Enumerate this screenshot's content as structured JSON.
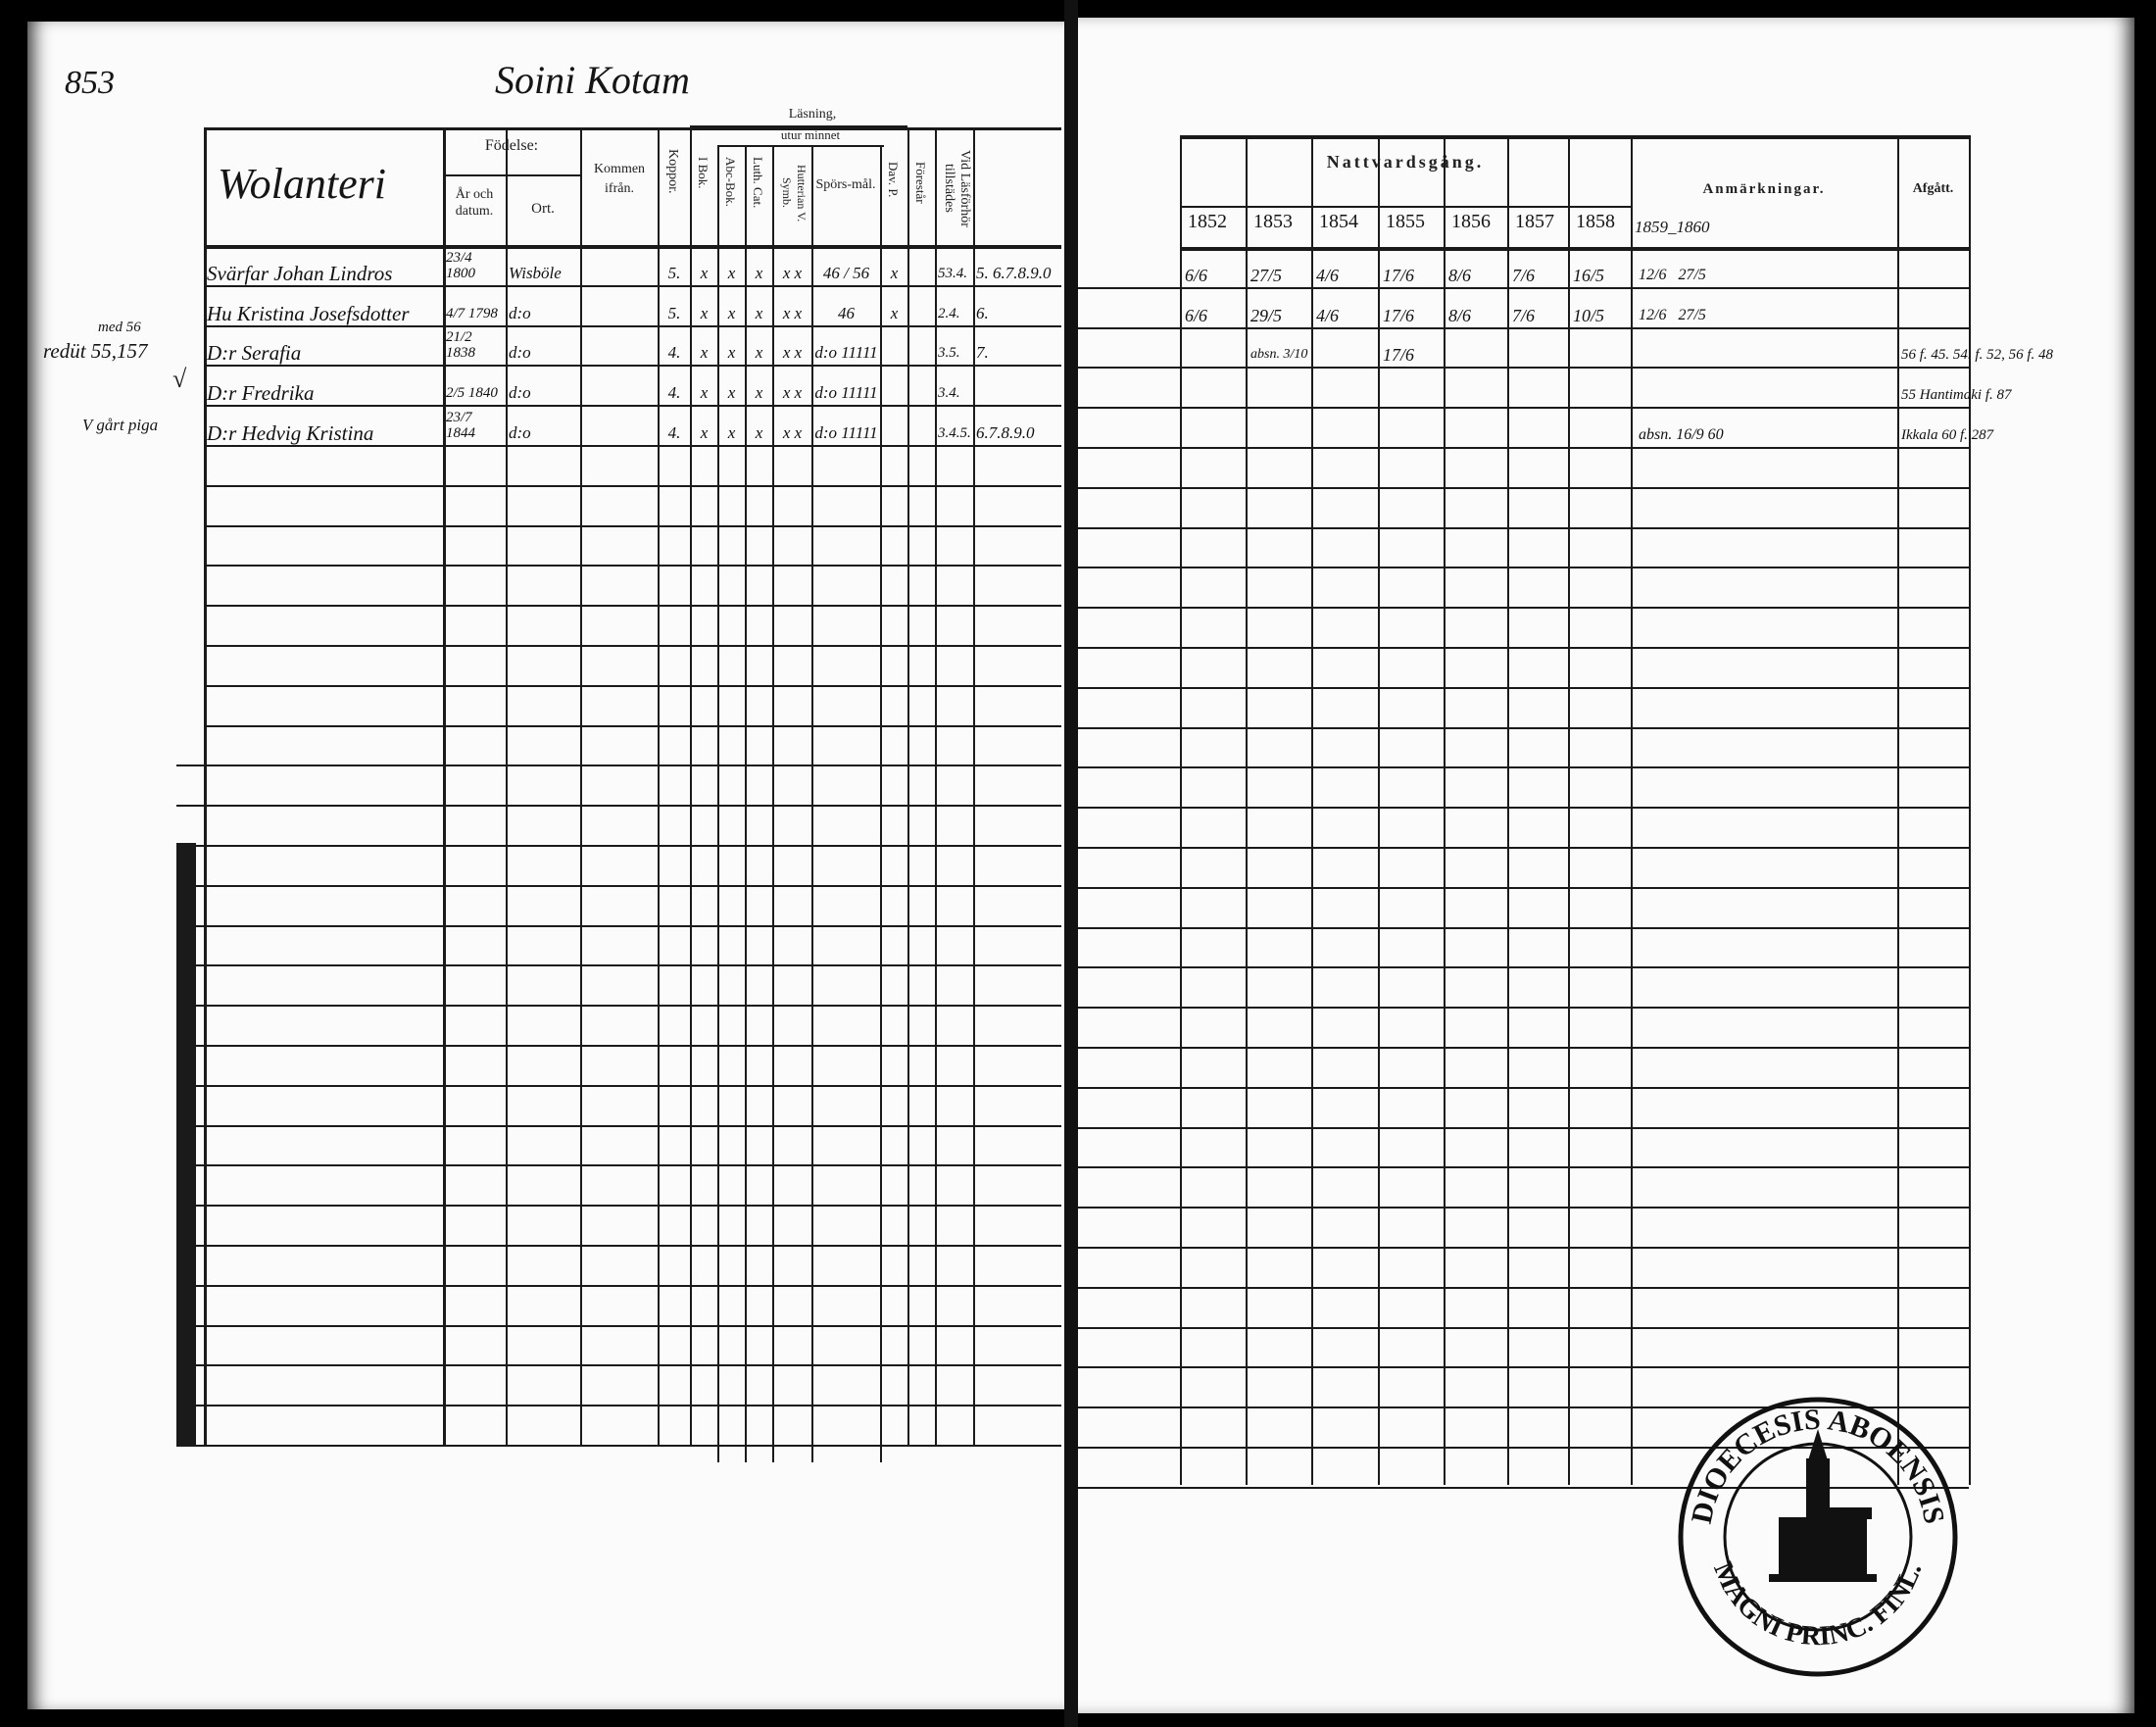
{
  "left_page": {
    "page_number": "853",
    "title": "Soini Kotam",
    "section_label": "Wolanteri",
    "headers": {
      "fodelse": "Födelse:",
      "ar_och_datum": "År och datum.",
      "ort": "Ort.",
      "kommen_ifran": "Kommen ifrån.",
      "kopporr": "Koppor.",
      "lasning": "Läsning,",
      "utur_minnet": "utur minnet",
      "i_bok": "I Bok.",
      "abc_bok": "Abc-Bok.",
      "luth_cat": "Luth. Cat.",
      "hutterian_v_symb": "Hutterian V. Symb.",
      "spors_mal": "Spörs-mål.",
      "dav_p": "Dav. P.",
      "forestar": "Förestår",
      "vid_lasforhor": "Vid Läsförhör tillstädes"
    },
    "rows": [
      {
        "cells": [
          "Svärfar Johan Lindros",
          "23/4 1800",
          "Wisböle",
          "",
          "5.",
          "x",
          "x",
          "x",
          "x x",
          "46 / 56",
          "x",
          "",
          "53.4.",
          "5. 6.7.8.9.0"
        ]
      },
      {
        "cells": [
          "Hu Kristina Josefsdotter",
          "4/7 1798",
          "d:o",
          "",
          "5.",
          "x",
          "x",
          "x",
          "x x",
          "46",
          "x",
          "",
          "2.4.",
          "6."
        ]
      },
      {
        "cells": [
          "D:r Serafia",
          "21/2 1838",
          "d:o",
          "",
          "4.",
          "x",
          "x",
          "x",
          "x x",
          "d:o 11111",
          "",
          "",
          "3.5.",
          "7."
        ]
      },
      {
        "cells": [
          "D:r Fredrika",
          "2/5 1840",
          "d:o",
          "",
          "4.",
          "x",
          "x",
          "x",
          "x x",
          "d:o 11111",
          "",
          "",
          "3.4.",
          ""
        ]
      },
      {
        "cells": [
          "D:r Hedvig Kristina",
          "23/7 1844",
          "d:o",
          "",
          "4.",
          "x",
          "x",
          "x",
          "x x",
          "d:o 11111",
          "",
          "",
          "3.4.5.",
          "6.7.8.9.0"
        ]
      }
    ],
    "margin_notes": [
      "med 56",
      "redüt 55,157",
      "√",
      "V gårt piga"
    ]
  },
  "right_page": {
    "headers": {
      "nattvardsgang": "Nattvardsgång.",
      "years": [
        "1852",
        "1853",
        "1854",
        "1855",
        "1856",
        "1857",
        "1858"
      ],
      "anmarkningar": "Anmärkningar.",
      "anm_years": "1859_1860",
      "afgatt": "Afgått."
    },
    "rows": [
      {
        "dates": [
          "6/6",
          "27/5",
          "4/6",
          "17/6",
          "8/6",
          "7/6",
          "16/5"
        ],
        "anm": "12/6   27/5",
        "afgatt": ""
      },
      {
        "dates": [
          "6/6",
          "29/5",
          "4/6",
          "17/6",
          "8/6",
          "7/6",
          "10/5"
        ],
        "anm": "12/6   27/5",
        "afgatt": ""
      },
      {
        "dates": [
          "",
          "absn. 3/10",
          "",
          "17/6",
          "",
          "",
          ""
        ],
        "anm": "",
        "afgatt": "56 f. 45. 54. f. 52, 56 f. 48"
      },
      {
        "dates": [
          "",
          "",
          "",
          "",
          "",
          "",
          ""
        ],
        "anm": "",
        "afgatt": "55 Hantimaki f. 87"
      },
      {
        "dates": [
          "",
          "",
          "",
          "",
          "",
          "",
          ""
        ],
        "anm": "absn. 16/9 60",
        "afgatt": "Ikkala 60 f. 287"
      }
    ]
  },
  "stamp": {
    "text_top": "DIOECESIS ABOENSIS",
    "text_bottom": "MAGNI PRINC. FINL."
  }
}
